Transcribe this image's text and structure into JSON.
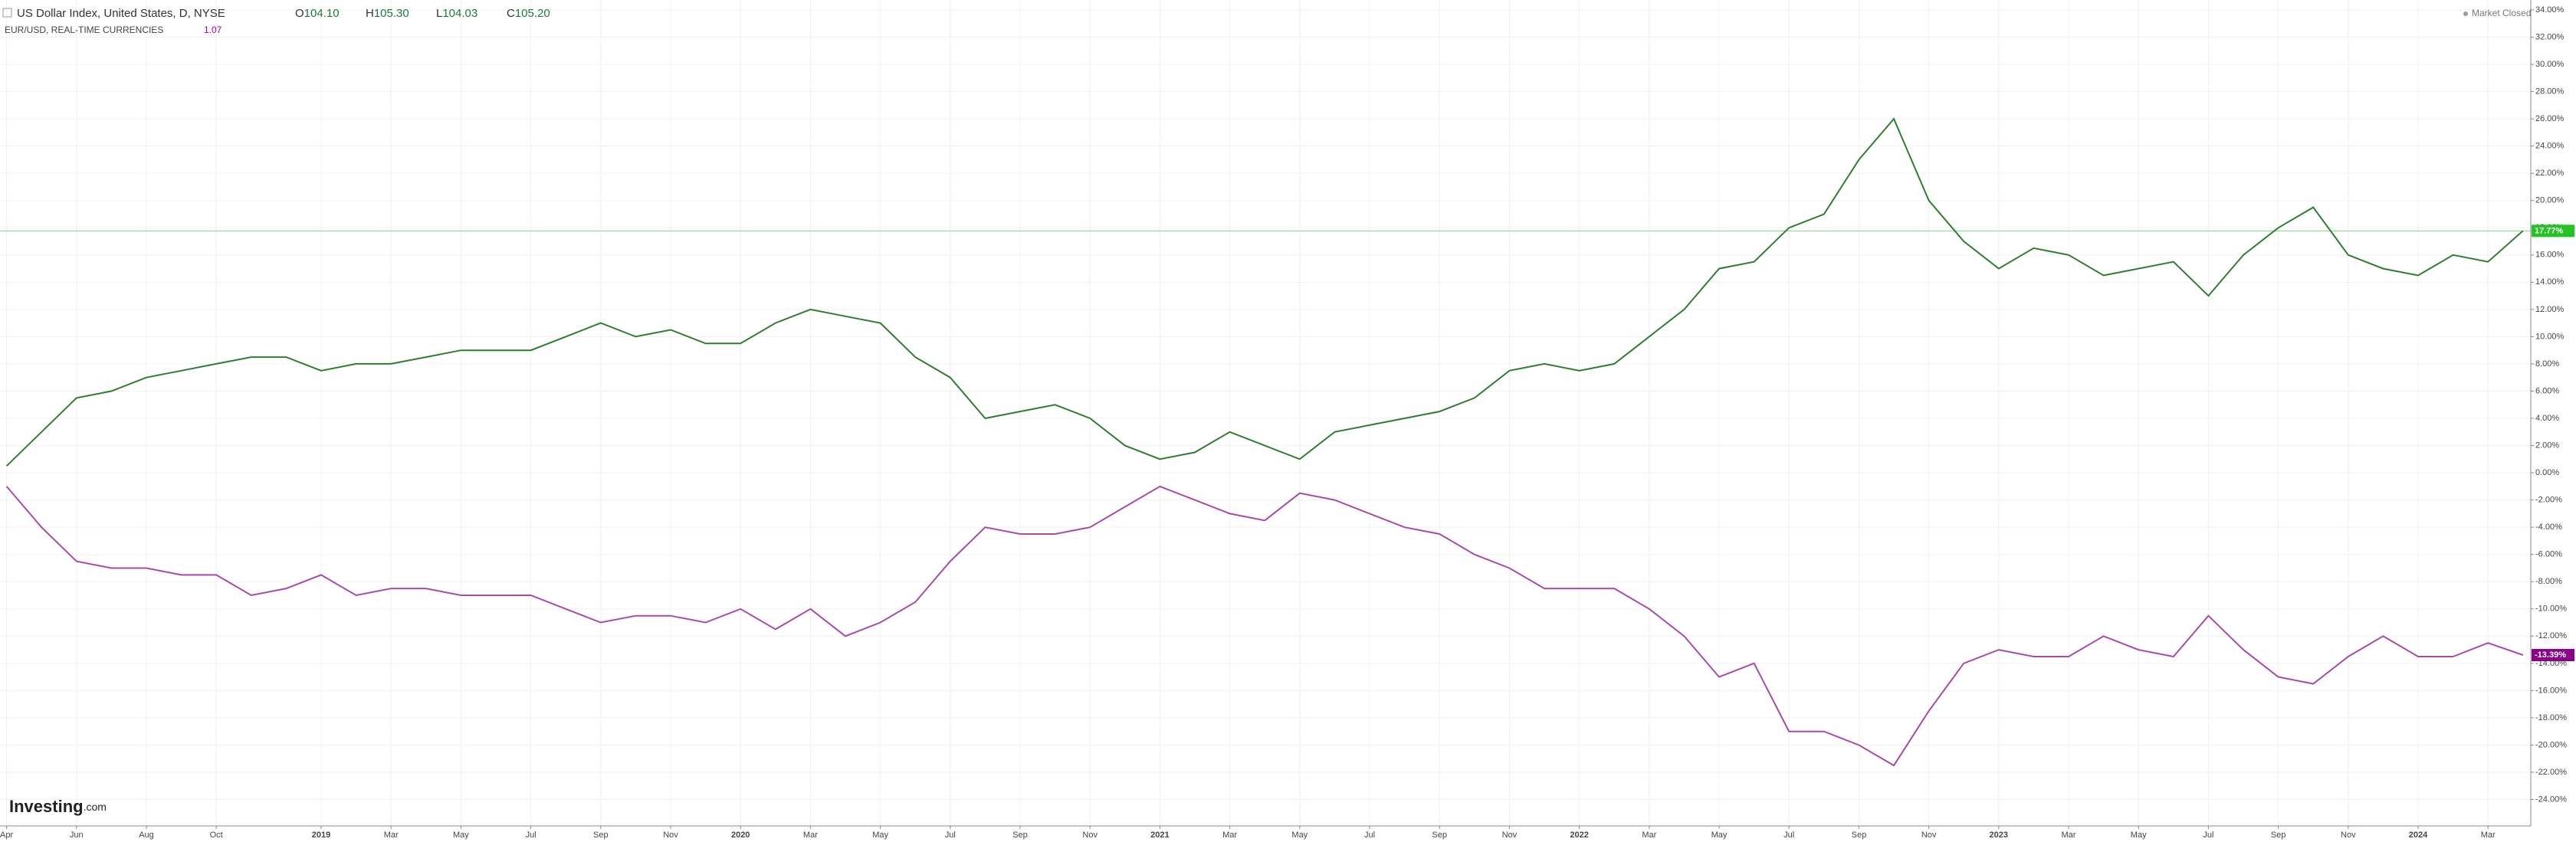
{
  "header": {
    "ohlc": [
      {
        "key": "O",
        "value": "104.10"
      },
      {
        "key": "H",
        "value": "105.30"
      },
      {
        "key": "L",
        "value": "104.03"
      },
      {
        "key": "C",
        "value": "105.20"
      }
    ],
    "compare_value": "1.07",
    "status": "Market Closed",
    "logo": "Investing",
    "logo_suffix": ".com"
  },
  "chart_data": {
    "type": "line",
    "categories": [
      "Apr",
      null,
      "Jun",
      null,
      "Aug",
      null,
      "Oct",
      null,
      null,
      "2019",
      null,
      "Mar",
      null,
      "May",
      null,
      "Jul",
      null,
      "Sep",
      null,
      "Nov",
      null,
      "2020",
      null,
      "Mar",
      null,
      "May",
      null,
      "Jul",
      null,
      "Sep",
      null,
      "Nov",
      null,
      "2021",
      null,
      "Mar",
      null,
      "May",
      null,
      "Jul",
      null,
      "Sep",
      null,
      "Nov",
      null,
      "2022",
      null,
      "Mar",
      null,
      "May",
      null,
      "Jul",
      null,
      "Sep",
      null,
      "Nov",
      null,
      "2023",
      null,
      "Mar",
      null,
      "May",
      null,
      "Jul",
      null,
      "Sep",
      null,
      "Nov",
      null,
      "2024",
      null,
      "Mar",
      null
    ],
    "series": [
      {
        "name": "US Dollar Index, United States, D, NYSE",
        "color": "#2e7d32",
        "values": [
          0.5,
          3,
          5.5,
          6,
          7,
          7.5,
          8,
          8.5,
          8.5,
          7.5,
          8,
          8,
          8.5,
          9,
          9,
          9,
          10,
          11,
          10,
          10.5,
          9.5,
          9.5,
          11,
          12,
          11.5,
          11,
          8.5,
          7,
          4,
          4.5,
          5,
          4,
          2,
          1,
          1.5,
          3,
          2,
          1,
          3,
          3.5,
          4,
          4.5,
          5.5,
          7.5,
          8,
          7.5,
          8,
          10,
          12,
          15,
          15.5,
          18,
          19,
          23,
          26,
          20,
          17,
          15,
          16.5,
          16,
          14.5,
          15,
          15.5,
          13,
          16,
          18,
          19.5,
          16,
          15,
          14.5,
          16,
          15.5,
          17.77
        ]
      },
      {
        "name": "EUR/USD, REAL-TIME CURRENCIES",
        "color": "#a64ca6",
        "values": [
          -1,
          -4,
          -6.5,
          -7,
          -7,
          -7.5,
          -7.5,
          -9,
          -8.5,
          -7.5,
          -9,
          -8.5,
          -8.5,
          -9,
          -9,
          -9,
          -10,
          -11,
          -10.5,
          -10.5,
          -11,
          -10,
          -11.5,
          -10,
          -12,
          -11,
          -9.5,
          -6.5,
          -4,
          -4.5,
          -4.5,
          -4,
          -2.5,
          -1,
          -2,
          -3,
          -3.5,
          -1.5,
          -2,
          -3,
          -4,
          -4.5,
          -6,
          -7,
          -8.5,
          -8.5,
          -8.5,
          -10,
          -12,
          -15,
          -14,
          -19,
          -19,
          -20,
          -21.5,
          -17.5,
          -14,
          -13,
          -13.5,
          -13.5,
          -12,
          -13,
          -13.5,
          -10.5,
          -13,
          -15,
          -15.5,
          -13.5,
          -12,
          -13.5,
          -13.5,
          -12.5,
          -13.39
        ]
      }
    ],
    "ylim": [
      -25.94,
      34.73
    ],
    "yticks": [
      {
        "value": 34,
        "label": "34.00%"
      },
      {
        "value": 32,
        "label": "32.00%"
      },
      {
        "value": 30,
        "label": "30.00%"
      },
      {
        "value": 28,
        "label": "28.00%"
      },
      {
        "value": 26,
        "label": "26.00%"
      },
      {
        "value": 24,
        "label": "24.00%"
      },
      {
        "value": 22,
        "label": "22.00%"
      },
      {
        "value": 20,
        "label": "20.00%"
      },
      {
        "value": 18,
        "label": "18.00%"
      },
      {
        "value": 16,
        "label": "16.00%"
      },
      {
        "value": 14,
        "label": "14.00%"
      },
      {
        "value": 12,
        "label": "12.00%"
      },
      {
        "value": 10,
        "label": "10.00%"
      },
      {
        "value": 8,
        "label": "8.00%"
      },
      {
        "value": 6,
        "label": "6.00%"
      },
      {
        "value": 4,
        "label": "4.00%"
      },
      {
        "value": 2,
        "label": "2.00%"
      },
      {
        "value": 0,
        "label": "0.00%"
      },
      {
        "value": -2,
        "label": "-2.00%"
      },
      {
        "value": -4,
        "label": "-4.00%"
      },
      {
        "value": -6,
        "label": "-6.00%"
      },
      {
        "value": -8,
        "label": "-8.00%"
      },
      {
        "value": -10,
        "label": "-10.00%"
      },
      {
        "value": -12,
        "label": "-12.00%"
      },
      {
        "value": -14,
        "label": "-14.00%"
      },
      {
        "value": -16,
        "label": "-16.00%"
      },
      {
        "value": -18,
        "label": "-18.00%"
      },
      {
        "value": -20,
        "label": "-20.00%"
      },
      {
        "value": -22,
        "label": "-22.00%"
      },
      {
        "value": -24,
        "label": "-24.00%"
      }
    ],
    "grid": true,
    "annotations": [
      {
        "value": 17.77,
        "label": "17.77%",
        "color": "#22c322",
        "line": true
      },
      {
        "value": -13.39,
        "label": "-13.39%",
        "color": "#8b008b",
        "line": false
      }
    ]
  }
}
